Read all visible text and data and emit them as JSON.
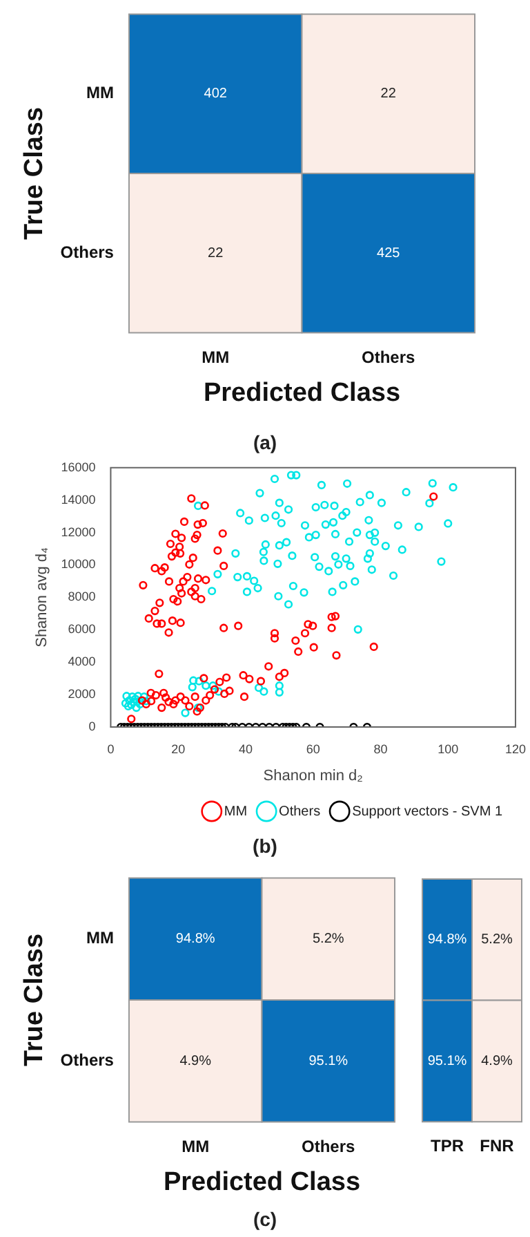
{
  "chart_data": [
    {
      "type": "heatmap",
      "xlabel": "Predicted Class",
      "ylabel": "True Class",
      "categories": [
        "MM",
        "Others"
      ],
      "y_categories": [
        "MM",
        "Others"
      ],
      "cells": [
        [
          402,
          22
        ],
        [
          22,
          425
        ]
      ],
      "data_labels": true,
      "annotations": [
        "(a)"
      ]
    },
    {
      "type": "scatter",
      "xlabel": "Shanon min d₂",
      "ylabel": "Shanon avg d₄",
      "xlim": [
        0,
        120
      ],
      "xticks": [
        0,
        20,
        40,
        60,
        80,
        100,
        120
      ],
      "ylim": [
        0,
        16000
      ],
      "yticks": [
        0,
        2000,
        4000,
        6000,
        8000,
        10000,
        12000,
        14000,
        16000
      ],
      "legend": "bottom right",
      "marker": "circle",
      "annotations": [
        "(b)"
      ],
      "series": [
        {
          "name": "MM",
          "color": "#ff0000",
          "x": [
            23.9,
            27.9,
            21.8,
            27.3,
            25.8,
            19.2,
            25.6,
            21.0,
            17.7,
            20.4,
            25.0,
            33.2,
            31.7,
            19.2,
            20.6,
            18.1,
            24.4,
            23.3,
            13.1,
            16.0,
            33.5,
            15.1,
            22.7,
            25.9,
            21.5,
            17.3,
            28.2,
            9.6,
            20.4,
            25.0,
            23.9,
            21.0,
            25.0,
            26.8,
            18.6,
            19.8,
            14.5,
            13.1,
            11.3,
            13.7,
            15.1,
            18.3,
            20.7,
            17.2,
            33.5,
            37.8,
            66.6,
            65.5,
            58.5,
            59.9,
            65.5,
            48.6,
            48.6,
            57.6,
            54.8,
            60.2,
            55.6,
            66.9,
            78.0,
            95.7,
            14.3,
            46.8,
            51.5,
            50.0,
            44.5,
            39.3,
            41.1,
            34.3,
            32.3,
            27.6,
            35.2,
            39.6,
            33.7,
            29.4,
            28.2,
            25.0,
            22.1,
            19.2,
            16.3,
            13.4,
            11.9,
            15.7,
            18.6,
            23.3,
            26.5,
            15.1,
            10.5,
            9.3,
            6.1,
            20.7,
            17.2,
            25.6,
            12.0,
            30.8
          ],
          "values": [
            14100,
            13670,
            12670,
            12580,
            12490,
            11920,
            11850,
            11670,
            11300,
            11120,
            11620,
            11940,
            10890,
            10760,
            10710,
            10530,
            10440,
            10030,
            9800,
            9845,
            9940,
            9620,
            9250,
            9160,
            8980,
            8980,
            9070,
            8750,
            8570,
            8570,
            8340,
            8250,
            8070,
            7890,
            7890,
            7750,
            7660,
            7160,
            6700,
            6380,
            6380,
            6560,
            6430,
            5830,
            6110,
            6240,
            6840,
            6790,
            6340,
            6240,
            6110,
            5790,
            5470,
            5790,
            5330,
            4920,
            4650,
            4420,
            4950,
            14220,
            3280,
            3740,
            3330,
            3100,
            2830,
            3190,
            2960,
            3050,
            2780,
            3010,
            2230,
            1870,
            2050,
            1960,
            1640,
            1870,
            1640,
            1640,
            1820,
            1960,
            2100,
            2100,
            1410,
            1280,
            1190,
            1190,
            1410,
            1640,
            500,
            1870,
            1550,
            960,
            1600,
            2320
          ]
        },
        {
          "name": "Others",
          "color": "#00e5e5",
          "x": [
            55.0,
            53.5,
            48.6,
            70.1,
            62.5,
            95.4,
            101.5,
            87.6,
            44.2,
            76.8,
            25.9,
            50.0,
            73.9,
            80.3,
            94.5,
            66.3,
            60.8,
            63.4,
            52.7,
            38.4,
            69.8,
            68.7,
            45.7,
            48.9,
            41.0,
            50.6,
            57.6,
            63.7,
            66.0,
            76.5,
            85.2,
            91.3,
            100.0,
            58.8,
            60.8,
            66.6,
            73.0,
            76.8,
            78.3,
            45.9,
            50.0,
            52.1,
            70.7,
            78.3,
            81.5,
            86.4,
            37.0,
            45.3,
            53.8,
            60.5,
            76.2,
            76.8,
            66.6,
            69.8,
            45.4,
            49.5,
            61.8,
            67.5,
            71.0,
            77.4,
            98.0,
            64.6,
            31.7,
            37.6,
            40.4,
            42.5,
            83.8,
            72.4,
            68.9,
            54.1,
            43.6,
            40.4,
            57.3,
            30.0,
            65.7,
            49.7,
            52.7,
            73.3,
            26.2,
            24.5,
            28.2,
            30.3,
            24.2,
            32.0,
            43.9,
            45.4,
            50.0,
            50.0,
            25.9,
            22.1,
            4.7,
            5.5,
            6.4,
            7.3,
            8.1,
            9.0,
            6.1,
            7.6,
            5.2,
            9.9,
            8.7,
            6.7,
            7.8,
            4.4,
            10.5
          ],
          "values": [
            15540,
            15540,
            15310,
            15020,
            14930,
            15040,
            14790,
            14490,
            14430,
            14310,
            13650,
            13830,
            13880,
            13830,
            13810,
            13650,
            13560,
            13700,
            13420,
            13200,
            13260,
            13040,
            12900,
            13040,
            12740,
            12580,
            12440,
            12490,
            12630,
            12760,
            12440,
            12350,
            12560,
            11710,
            11850,
            11900,
            12000,
            11850,
            11990,
            11260,
            11210,
            11400,
            11440,
            11440,
            11170,
            10940,
            10710,
            10800,
            10570,
            10480,
            10390,
            10710,
            10530,
            10390,
            10260,
            10070,
            9890,
            10030,
            9940,
            9710,
            10210,
            9620,
            9430,
            9250,
            9300,
            9020,
            9340,
            8980,
            8750,
            8700,
            8570,
            8340,
            8300,
            8390,
            8340,
            8070,
            7570,
            6020,
            2830,
            2870,
            2550,
            2550,
            2460,
            2190,
            2420,
            2190,
            2550,
            2140,
            1190,
            870,
            1910,
            1640,
            1870,
            1730,
            1910,
            1640,
            1370,
            1190,
            1280,
            1870,
            1410,
            1550,
            1550,
            1460,
            1600
          ]
        },
        {
          "name": "Support vectors - SVM 1",
          "color": "#000000",
          "x": [
            3,
            4,
            5,
            6,
            7,
            8,
            9,
            10,
            11,
            12,
            13,
            14,
            15,
            16,
            17,
            18,
            19,
            20,
            21,
            22,
            23,
            24,
            25,
            26,
            27,
            28,
            29,
            30,
            31,
            32,
            33,
            34,
            36,
            37,
            39,
            41,
            43,
            45,
            47,
            49,
            51,
            52,
            53,
            54,
            55,
            58,
            62,
            72,
            76
          ],
          "values": [
            0,
            0,
            0,
            0,
            0,
            0,
            0,
            0,
            0,
            0,
            0,
            0,
            0,
            0,
            0,
            0,
            0,
            0,
            0,
            0,
            0,
            0,
            0,
            0,
            0,
            0,
            0,
            0,
            0,
            0,
            0,
            0,
            0,
            0,
            0,
            0,
            0,
            0,
            0,
            0,
            0,
            0,
            0,
            0,
            0,
            0,
            0,
            0,
            0
          ]
        }
      ]
    },
    {
      "type": "heatmap",
      "xlabel": "Predicted Class",
      "ylabel": "True Class",
      "categories": [
        "MM",
        "Others"
      ],
      "y_categories": [
        "MM",
        "Others"
      ],
      "cells": [
        [
          94.8,
          5.2
        ],
        [
          4.9,
          95.1
        ]
      ],
      "cell_labels": [
        [
          "94.8%",
          "5.2%"
        ],
        [
          "4.9%",
          "95.1%"
        ]
      ],
      "annotations": [
        "(c)"
      ]
    },
    {
      "type": "heatmap",
      "categories": [
        "TPR",
        "FNR"
      ],
      "y_categories": [
        null,
        null
      ],
      "cells": [
        [
          94.8,
          5.2
        ],
        [
          95.1,
          4.9
        ]
      ],
      "cell_labels": [
        [
          "94.8%",
          "5.2%"
        ],
        [
          "95.1%",
          "4.9%"
        ]
      ]
    }
  ]
}
